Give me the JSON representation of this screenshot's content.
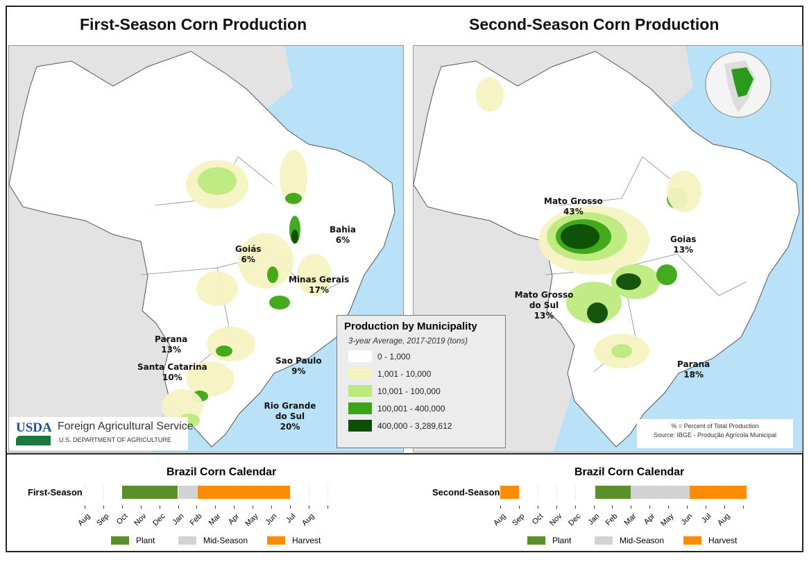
{
  "left_map": {
    "title": "First-Season Corn Production",
    "labels": [
      {
        "name": "Bahia",
        "pct": "6%"
      },
      {
        "name": "Goiás",
        "pct": "6%"
      },
      {
        "name": "Minas Gerais",
        "pct": "17%"
      },
      {
        "name": "Parana",
        "pct": "13%"
      },
      {
        "name": "Santa Catarina",
        "pct": "10%"
      },
      {
        "name": "Sao Paulo",
        "pct": "9%"
      },
      {
        "name": "Rio Grande do Sul",
        "pct": "20%"
      }
    ]
  },
  "right_map": {
    "title": "Second-Season Corn Production",
    "labels": [
      {
        "name": "Mato Grosso",
        "pct": "43%"
      },
      {
        "name": "Goias",
        "pct": "13%"
      },
      {
        "name": "Mato Grosso do Sul",
        "pct": "13%"
      },
      {
        "name": "Parana",
        "pct": "18%"
      }
    ],
    "note": "% = Percent of Total Production",
    "source": "Source: IBGE - Produção Agrícola Municipal"
  },
  "legend": {
    "title": "Production by Municipality",
    "subtitle": "3-year Average, 2017-2019 (tons)",
    "items": [
      {
        "label": "0 - 1,000",
        "color": "#ffffff"
      },
      {
        "label": "1,001 - 10,000",
        "color": "#f5f3c2"
      },
      {
        "label": "10,001 - 100,000",
        "color": "#bdea7e"
      },
      {
        "label": "100,001 - 400,000",
        "color": "#3aa514"
      },
      {
        "label": "400,000 - 3,289,612",
        "color": "#0c4d07"
      }
    ]
  },
  "branding": {
    "logo": "USDA",
    "agency": "Foreign Agricultural Service",
    "department": "U.S. DEPARTMENT OF AGRICULTURE"
  },
  "calendars": [
    {
      "title": "Brazil Corn Calendar",
      "row_label": "First-Season",
      "months": [
        "Aug",
        "Sep",
        "Oct",
        "Nov",
        "Dec",
        "Jan",
        "Feb",
        "Mar",
        "Apr",
        "May",
        "Jun",
        "Jul",
        "Aug"
      ],
      "segments": [
        {
          "stage": "Plant",
          "start": 2,
          "end": 5
        },
        {
          "stage": "Mid-Season",
          "start": 5,
          "end": 6.05
        },
        {
          "stage": "Harvest",
          "start": 6.05,
          "end": 11
        }
      ]
    },
    {
      "title": "Brazil Corn Calendar",
      "row_label": "Second-Season",
      "months": [
        "Aug",
        "Sep",
        "Oct",
        "Nov",
        "Dec",
        "Jan",
        "Feb",
        "Mar",
        "Apr",
        "May",
        "Jun",
        "Jul",
        "Aug"
      ],
      "segments": [
        {
          "stage": "Harvest",
          "start": 0,
          "end": 1
        },
        {
          "stage": "Plant",
          "start": 5.1,
          "end": 7
        },
        {
          "stage": "Mid-Season",
          "start": 7,
          "end": 10.15
        },
        {
          "stage": "Harvest",
          "start": 10.15,
          "end": 13.2
        }
      ]
    }
  ],
  "calendar_legend": [
    {
      "label": "Plant",
      "color": "#5a8f29"
    },
    {
      "label": "Mid-Season",
      "color": "#d3d3d6"
    },
    {
      "label": "Harvest",
      "color": "#ff8c00"
    }
  ],
  "colors": {
    "ocean": "#b9e1f7",
    "land": "#e3e3e3",
    "brazil": "#ffffff"
  }
}
